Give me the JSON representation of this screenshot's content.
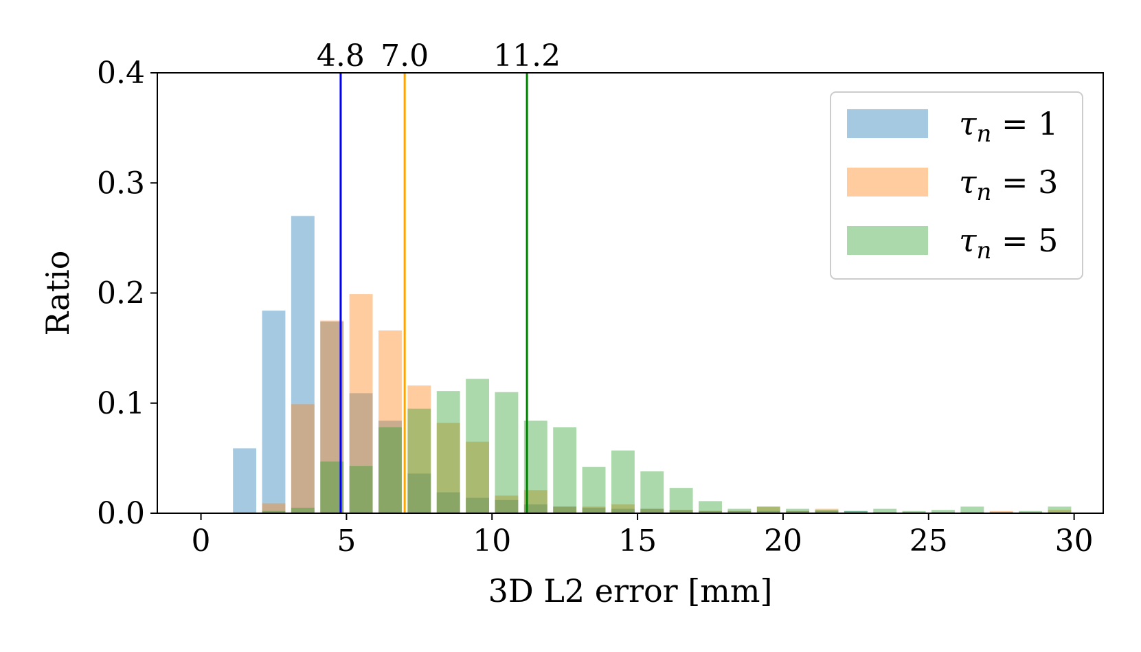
{
  "chart_data": {
    "type": "bar",
    "xlabel": "3D L2 error [mm]",
    "ylabel": "Ratio",
    "xlim": [
      -1.5,
      31
    ],
    "ylim": [
      0,
      0.4
    ],
    "xticks": [
      "0",
      "5",
      "10",
      "15",
      "20",
      "25",
      "30"
    ],
    "yticks": [
      "0.0",
      "0.1",
      "0.2",
      "0.3",
      "0.4"
    ],
    "bin_width": 1,
    "bin_centers": [
      0.5,
      1.5,
      2.5,
      3.5,
      4.5,
      5.5,
      6.5,
      7.5,
      8.5,
      9.5,
      10.5,
      11.5,
      12.5,
      13.5,
      14.5,
      15.5,
      16.5,
      17.5,
      18.5,
      19.5,
      20.5,
      21.5,
      22.5,
      23.5,
      24.5,
      25.5,
      26.5,
      27.5,
      28.5,
      29.5
    ],
    "series": [
      {
        "name": "τn = 1",
        "color": "#1f77b4",
        "values": [
          0,
          0.059,
          0.184,
          0.27,
          0.174,
          0.109,
          0.084,
          0.036,
          0.019,
          0.014,
          0.012,
          0.008,
          0.006,
          0.005,
          0.004,
          0.004,
          0.003,
          0.002,
          0.002,
          0.002,
          0.002,
          0.002,
          0.002,
          0.001,
          0.001,
          0.001,
          0.001,
          0.001,
          0.001,
          0.001
        ]
      },
      {
        "name": "τn = 3",
        "color": "#ff7f0e",
        "values": [
          0,
          0,
          0.009,
          0.099,
          0.175,
          0.199,
          0.166,
          0.116,
          0.082,
          0.065,
          0.016,
          0.021,
          0.006,
          0.006,
          0.008,
          0.004,
          0.003,
          0.002,
          0.002,
          0.006,
          0.002,
          0.004,
          0.001,
          0.001,
          0.001,
          0.001,
          0.001,
          0.002,
          0.001,
          0.003
        ]
      },
      {
        "name": "τn = 5",
        "color": "#2ca02c",
        "values": [
          0,
          0,
          0.002,
          0.005,
          0.047,
          0.043,
          0.078,
          0.095,
          0.111,
          0.122,
          0.11,
          0.084,
          0.078,
          0.042,
          0.057,
          0.038,
          0.023,
          0.011,
          0.004,
          0.006,
          0.004,
          0.003,
          0.002,
          0.004,
          0.002,
          0.003,
          0.006,
          0.001,
          0.002,
          0.006
        ]
      }
    ],
    "vlines": [
      {
        "x": 4.8,
        "label": "4.8",
        "color": "#0000ff"
      },
      {
        "x": 7.0,
        "label": "7.0",
        "color": "#ffa500"
      },
      {
        "x": 11.2,
        "label": "11.2",
        "color": "#008000"
      }
    ],
    "legend": {
      "placement": "top-right",
      "entries": [
        {
          "symbol": "τ",
          "subscript": "n",
          "rest": " = 1"
        },
        {
          "symbol": "τ",
          "subscript": "n",
          "rest": " = 3"
        },
        {
          "symbol": "τ",
          "subscript": "n",
          "rest": " = 5"
        }
      ]
    },
    "grid": false
  }
}
